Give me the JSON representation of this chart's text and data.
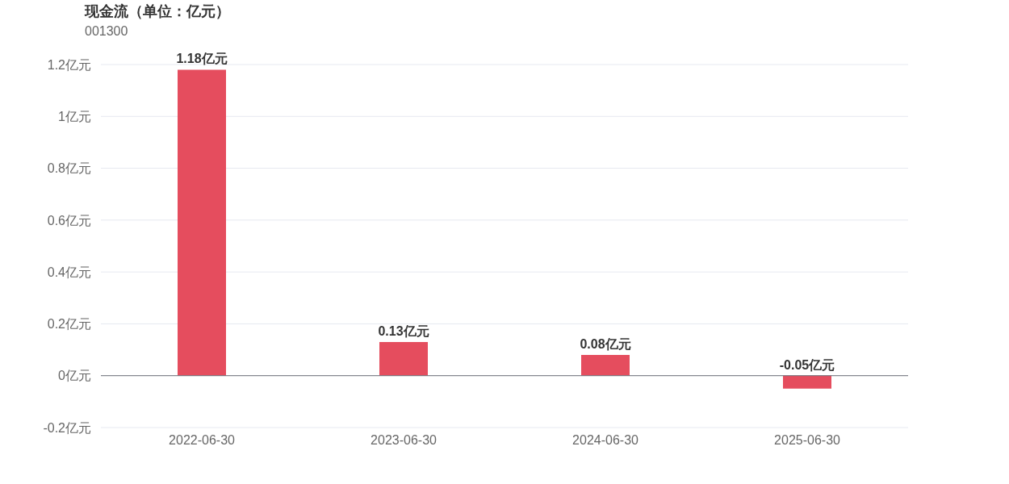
{
  "chart_data": {
    "type": "bar",
    "title": "现金流（单位：亿元）",
    "subtitle": "001300",
    "categories": [
      "2022-06-30",
      "2023-06-30",
      "2024-06-30",
      "2025-06-30"
    ],
    "values": [
      1.18,
      0.13,
      0.08,
      -0.05
    ],
    "value_labels": [
      "1.18亿元",
      "0.13亿元",
      "0.08亿元",
      "-0.05亿元"
    ],
    "color": "#e54d5e",
    "ylim": [
      -0.2,
      1.2
    ],
    "yticks": [
      {
        "value": -0.2,
        "label": "-0.2亿元"
      },
      {
        "value": 0,
        "label": "0亿元"
      },
      {
        "value": 0.2,
        "label": "0.2亿元"
      },
      {
        "value": 0.4,
        "label": "0.4亿元"
      },
      {
        "value": 0.6,
        "label": "0.6亿元"
      },
      {
        "value": 0.8,
        "label": "0.8亿元"
      },
      {
        "value": 1,
        "label": "1亿元"
      },
      {
        "value": 1.2,
        "label": "1.2亿元"
      }
    ],
    "grid": "y"
  }
}
